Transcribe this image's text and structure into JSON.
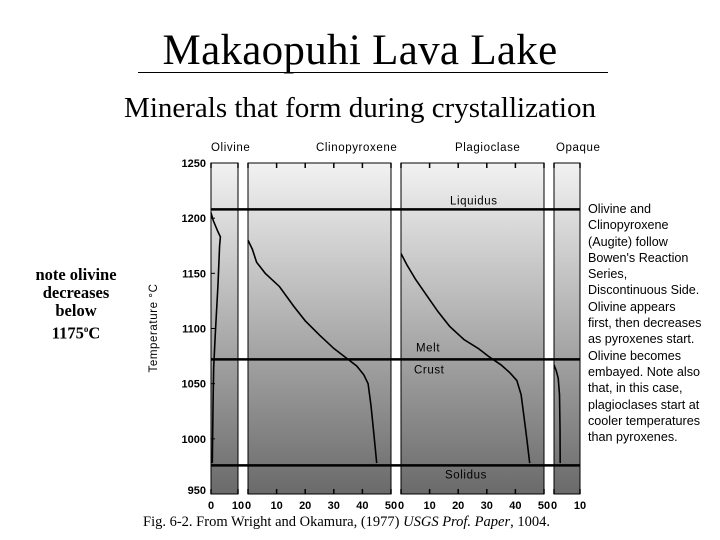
{
  "slide": {
    "title": "Makaopuhi Lava Lake",
    "subtitle": "Minerals that form during crystallization",
    "left_note": {
      "line1": "note olivine",
      "line2": "decreases",
      "line3": "below",
      "line4_value": "1175",
      "line4_super": "o",
      "line4_unit": "C"
    },
    "right_note": "Olivine and\nClinopyroxene\n(Augite) follow\nBowen's Reaction\nSeries,\nDiscontinuous Side.\nOlivine appears\nfirst, then decreases\nas pyroxenes start.\nOlivine becomes\nembayed. Note also\nthat, in this case,\nplagioclases start at\ncooler temperatures\nthan pyroxenes.",
    "caption": {
      "prefix": "Fig. 6-2. From Wright and Okamura, (1977) ",
      "italic": "USGS Prof. Paper",
      "suffix": ", 1004."
    }
  },
  "colors": {
    "background": "#ffffff",
    "panel_top": "#f2f2f2",
    "panel_bottom": "#6a6a6a",
    "curve": "#000000",
    "reference_line": "#000000",
    "frame": "#000000"
  },
  "chart_data": {
    "type": "line",
    "ylabel": "Temperature °C",
    "ylim": [
      950,
      1250
    ],
    "yticks": [
      950,
      1000,
      1050,
      1100,
      1150,
      1200,
      1250
    ],
    "panels": [
      {
        "name": "Olivine",
        "xlim": [
          0,
          10
        ],
        "xticks": [
          0,
          10
        ],
        "xtick_labels": [
          "0",
          "10"
        ],
        "series": [
          {
            "points": [
              [
                0,
                1205
              ],
              [
                0.8,
                1198
              ],
              [
                2.5,
                1188
              ],
              [
                3.5,
                1183
              ],
              [
                3.2,
                1175
              ],
              [
                2.6,
                1140
              ],
              [
                1.6,
                1095
              ],
              [
                1.0,
                1065
              ],
              [
                0.8,
                1040
              ],
              [
                0.6,
                1000
              ],
              [
                0.5,
                978
              ]
            ]
          }
        ]
      },
      {
        "name": "Clinopyroxene",
        "xlim": [
          0,
          50
        ],
        "xticks": [
          0,
          10,
          20,
          30,
          40,
          50
        ],
        "xtick_labels": [
          "0",
          "10",
          "20",
          "30",
          "40",
          "50"
        ],
        "series": [
          {
            "points": [
              [
                0,
                1180
              ],
              [
                1.5,
                1172
              ],
              [
                3,
                1160
              ],
              [
                6,
                1150
              ],
              [
                11,
                1138
              ],
              [
                16,
                1120
              ],
              [
                20,
                1107
              ],
              [
                25,
                1094
              ],
              [
                30,
                1082
              ],
              [
                35,
                1072
              ],
              [
                38,
                1066
              ],
              [
                40.5,
                1058
              ],
              [
                42,
                1050
              ],
              [
                43,
                1030
              ],
              [
                44,
                1005
              ],
              [
                45,
                978
              ]
            ]
          }
        ]
      },
      {
        "name": "Plagioclase",
        "xlim": [
          0,
          50
        ],
        "xticks": [
          0,
          10,
          20,
          30,
          40,
          50
        ],
        "xtick_labels": [
          "0",
          "10",
          "20",
          "30",
          "40",
          "50"
        ],
        "series": [
          {
            "points": [
              [
                0,
                1168
              ],
              [
                2,
                1158
              ],
              [
                5,
                1145
              ],
              [
                9,
                1130
              ],
              [
                13,
                1115
              ],
              [
                17,
                1102
              ],
              [
                22,
                1090
              ],
              [
                27,
                1082
              ],
              [
                31,
                1074
              ],
              [
                35,
                1067
              ],
              [
                38,
                1060
              ],
              [
                40.5,
                1053
              ],
              [
                42,
                1040
              ],
              [
                43,
                1020
              ],
              [
                44,
                1000
              ],
              [
                45,
                978
              ]
            ]
          }
        ]
      },
      {
        "name": "Opaque",
        "xlim": [
          0,
          10
        ],
        "xticks": [
          0,
          10
        ],
        "xtick_labels": [
          "0",
          "10"
        ],
        "series": [
          {
            "points": [
              [
                0,
                1067
              ],
              [
                0.8,
                1062
              ],
              [
                1.6,
                1055
              ],
              [
                2.1,
                1040
              ],
              [
                2.3,
                1010
              ],
              [
                2.4,
                978
              ]
            ]
          }
        ]
      }
    ],
    "reference_lines": [
      {
        "label": "Liquidus",
        "y": 1208
      },
      {
        "label": "Melt",
        "y": 1072,
        "label2": "Crust"
      },
      {
        "label": "Solidus",
        "y": 976
      }
    ],
    "legend": "none",
    "grid": false
  }
}
